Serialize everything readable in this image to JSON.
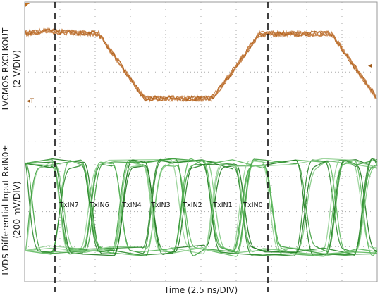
{
  "y_label_top": {
    "line1": "LVCMOS RXCLKOUT",
    "line2": "(2 V/DIV)"
  },
  "y_label_bottom": {
    "line1": "LVDS Differential Input RxIN0±",
    "line2": "(200 mV/DIV)"
  },
  "x_label": "Time (2.5 ns/DIV)",
  "bit_labels": [
    "TxIN7",
    "TxIN6",
    "TxIN4",
    "TxIN3",
    "TxIN2",
    "TxIN1",
    "TxIN0"
  ]
}
